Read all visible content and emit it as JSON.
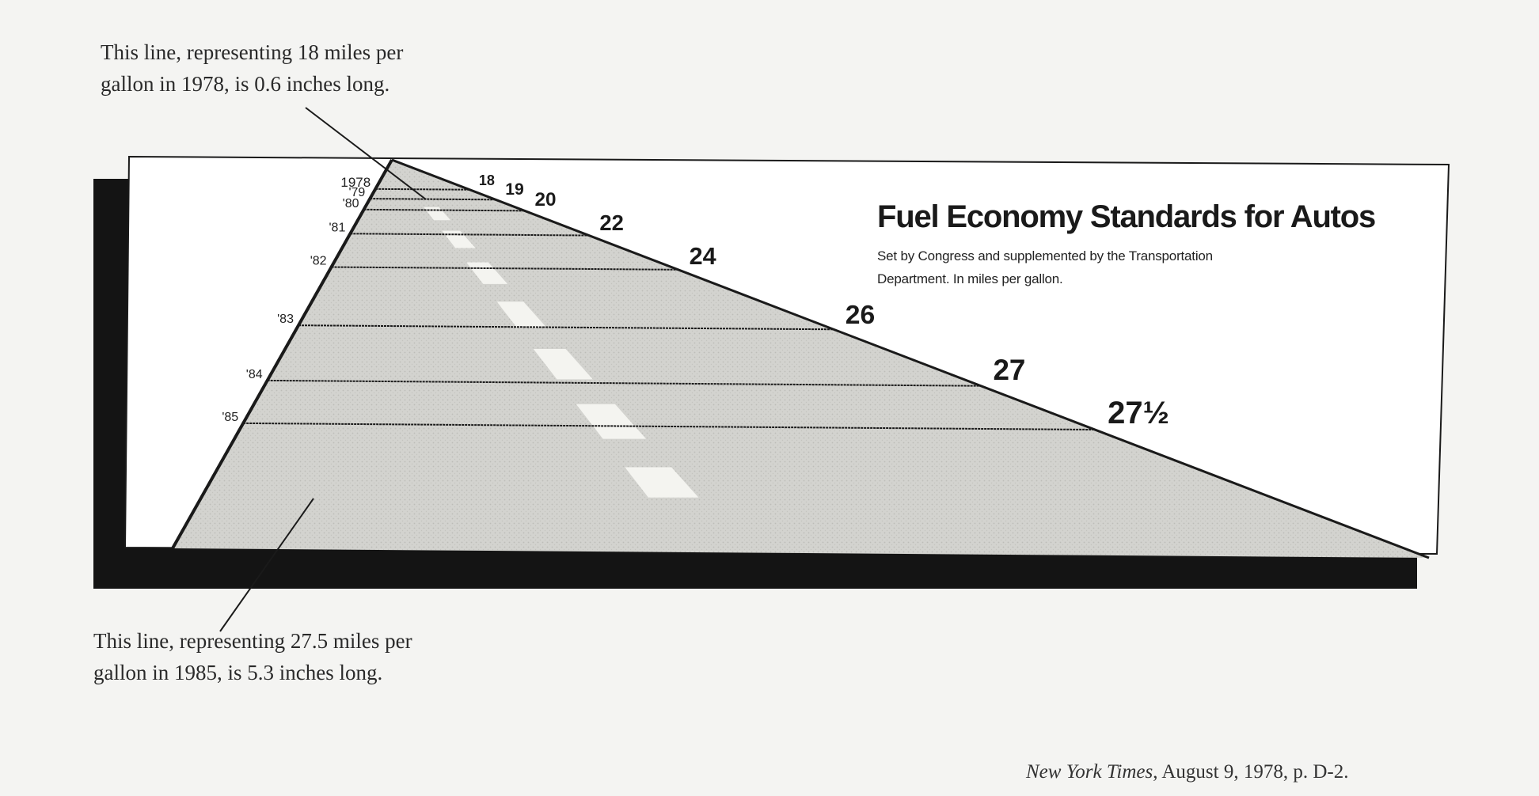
{
  "annotations": {
    "top": {
      "line1": "This line, representing 18 miles per",
      "line2": "gallon in 1978, is 0.6 inches long."
    },
    "bottom": {
      "line1": "This line, representing 27.5 miles per",
      "line2": "gallon in 1985, is 5.3 inches long."
    }
  },
  "source": {
    "publication": "New York Times",
    "detail": ", August 9, 1978, p. D-2."
  },
  "chart_data": {
    "type": "bar",
    "title": "Fuel Economy Standards for Autos",
    "subtitle_line1": "Set by Congress and supplemented by the Transportation",
    "subtitle_line2": "Department. In miles per gallon.",
    "categories": [
      "1978",
      "'79",
      "'80",
      "'81",
      "'82",
      "'83",
      "'84",
      "'85"
    ],
    "values": [
      18,
      19,
      20,
      22,
      24,
      26,
      27,
      27.5
    ],
    "value_labels": [
      "18",
      "19",
      "20",
      "22",
      "24",
      "26",
      "27",
      "27½"
    ],
    "xlabel": "",
    "ylabel": "",
    "grid": false,
    "colors": {
      "road_fill": "#d0d0cc",
      "panel": "#ffffff",
      "shadow": "#141414",
      "lines": "#1a1a1a",
      "lane_marks": "#f4f4f0"
    }
  }
}
